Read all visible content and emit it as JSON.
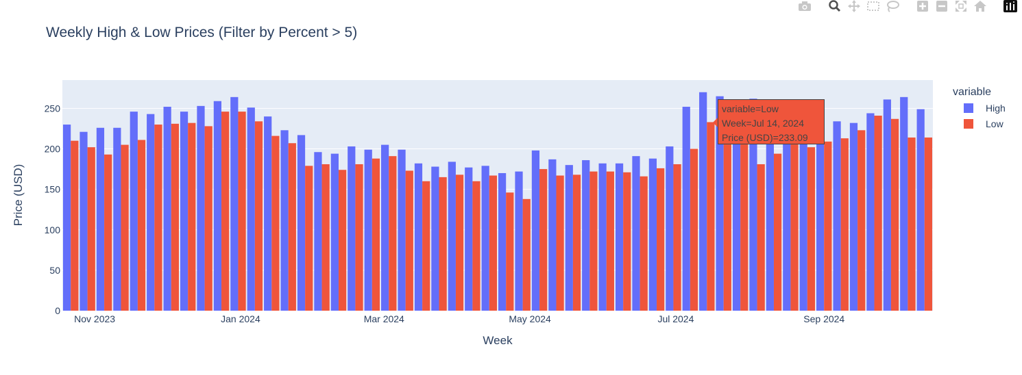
{
  "chart_data": {
    "type": "bar",
    "title": "Weekly High & Low Prices (Filter by Percent > 5)",
    "xlabel": "Week",
    "ylabel": "Price (USD)",
    "ylim": [
      0,
      285
    ],
    "yticks": [
      0,
      50,
      100,
      150,
      200,
      250
    ],
    "xticks": [
      "Nov 2023",
      "Jan 2024",
      "Mar 2024",
      "May 2024",
      "Jul 2024",
      "Sep 2024"
    ],
    "legend": {
      "title": "variable",
      "position": "right"
    },
    "grid": true,
    "series": [
      {
        "name": "High",
        "color": "#636EFA",
        "values": [
          230,
          221,
          226,
          226,
          246,
          243,
          252,
          246,
          253,
          259,
          264,
          251,
          240,
          223,
          217,
          196,
          194,
          203,
          199,
          205,
          199,
          182,
          178,
          184,
          177,
          179,
          170,
          172,
          198,
          187,
          180,
          186,
          182,
          182,
          191,
          188,
          203,
          252,
          270,
          265,
          258,
          262,
          226,
          221,
          222,
          215,
          234,
          232,
          244,
          261,
          264,
          249
        ]
      },
      {
        "name": "Low",
        "color": "#EF553B",
        "values": [
          210,
          202,
          193,
          205,
          211,
          230,
          231,
          232,
          228,
          246,
          246,
          234,
          216,
          207,
          179,
          181,
          174,
          181,
          188,
          191,
          173,
          160,
          165,
          168,
          160,
          167,
          146,
          138,
          175,
          167,
          168,
          172,
          172,
          171,
          166,
          176,
          181,
          200,
          233,
          224,
          208,
          181,
          194,
          206,
          202,
          209,
          213,
          223,
          241,
          237,
          214,
          214
        ]
      }
    ],
    "x": [
      "2023-10-22",
      "2023-10-29",
      "2023-11-05",
      "2023-11-12",
      "2023-11-19",
      "2023-11-26",
      "2023-12-03",
      "2023-12-10",
      "2023-12-17",
      "2023-12-24",
      "2023-12-31",
      "2024-01-07",
      "2024-01-14",
      "2024-01-21",
      "2024-01-28",
      "2024-02-04",
      "2024-02-11",
      "2024-02-18",
      "2024-02-25",
      "2024-03-03",
      "2024-03-10",
      "2024-03-17",
      "2024-03-24",
      "2024-03-31",
      "2024-04-07",
      "2024-04-14",
      "2024-04-21",
      "2024-04-28",
      "2024-05-05",
      "2024-05-12",
      "2024-05-19",
      "2024-05-26",
      "2024-06-02",
      "2024-06-09",
      "2024-06-16",
      "2024-06-23",
      "2024-06-30",
      "2024-07-07",
      "2024-07-14",
      "2024-07-21",
      "2024-07-28",
      "2024-08-04",
      "2024-08-11",
      "2024-08-18",
      "2024-08-25",
      "2024-09-01",
      "2024-09-08",
      "2024-09-15",
      "2024-09-22",
      "2024-09-29",
      "2024-10-06",
      "2024-10-13"
    ]
  },
  "tooltip": {
    "line1": "variable=Low",
    "line2": "Week=Jul 14, 2024",
    "line3": "Price (USD)=233.09"
  },
  "modebar": {
    "icons": [
      "camera-icon",
      "zoom-icon",
      "pan-icon",
      "box-select-icon",
      "lasso-icon",
      "zoom-in-icon",
      "zoom-out-icon",
      "autoscale-icon",
      "reset-axes-icon",
      "plotly-logo-icon"
    ]
  }
}
